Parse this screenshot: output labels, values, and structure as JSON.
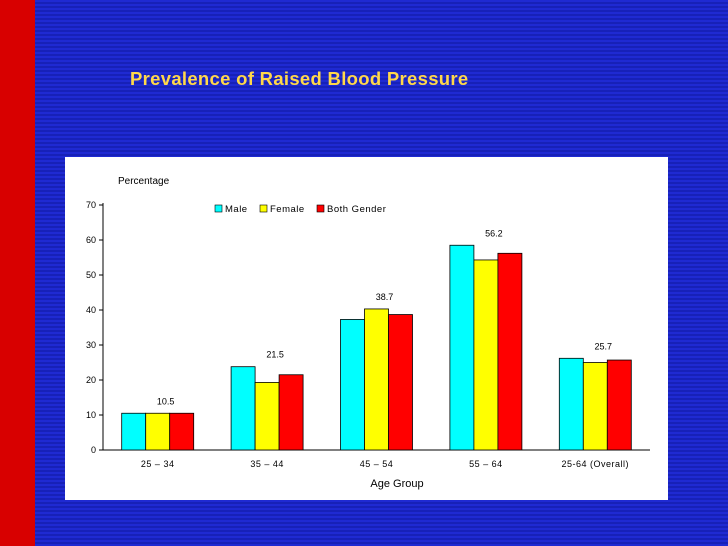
{
  "slide": {
    "title": "Prevalence of Raised Blood Pressure"
  },
  "chart_data": {
    "type": "bar",
    "ylabel": "Percentage",
    "xlabel": "Age Group",
    "ylim": [
      0,
      70
    ],
    "yticks": [
      0,
      10,
      20,
      30,
      40,
      50,
      60,
      70
    ],
    "grid": false,
    "legend_position": "top",
    "categories": [
      "25 – 34",
      "35 – 44",
      "45 – 54",
      "55 – 64",
      "25-64 (Overall)"
    ],
    "series": [
      {
        "name": "Male",
        "color": "#00ffff",
        "values": [
          10.5,
          23.8,
          37.3,
          58.5,
          26.2
        ]
      },
      {
        "name": "Female",
        "color": "#ffff00",
        "values": [
          10.5,
          19.3,
          40.3,
          54.3,
          25.0
        ]
      },
      {
        "name": "Both Gender",
        "color": "#ff0000",
        "values": [
          10.5,
          21.5,
          38.7,
          56.2,
          25.7
        ]
      }
    ],
    "data_labels": [
      "10.5",
      "21.5",
      "38.7",
      "56.2",
      "25.7"
    ]
  }
}
